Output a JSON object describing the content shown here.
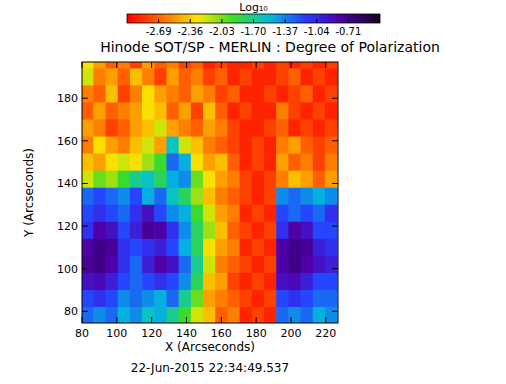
{
  "chart_data": {
    "type": "heatmap",
    "title": "Hinode SOT/SP - MERLIN : Degree of Polarization",
    "subtitle": "22-Jun-2015 22:34:49.537",
    "x_label": "X (Arcseconds)",
    "y_label": "Y (Arcseconds)",
    "xlim": [
      80,
      227
    ],
    "ylim": [
      74.5,
      197
    ],
    "xticks": [
      80,
      100,
      120,
      140,
      160,
      180,
      200,
      220
    ],
    "yticks": [
      80,
      100,
      120,
      140,
      160,
      180
    ],
    "colorbar_label": "Log₁₀",
    "clim": [
      -3.02,
      -0.38
    ],
    "cticks": [
      -2.69,
      -2.36,
      -2.03,
      {
        "value": -1.7,
        "label": "-1.70"
      },
      -1.37,
      -1.04,
      -0.71
    ],
    "x": [
      83,
      90,
      97,
      104,
      111,
      118,
      125,
      132,
      139,
      146,
      153,
      160,
      167,
      174,
      181,
      188,
      195,
      202,
      209,
      216,
      223
    ],
    "y": [
      198,
      190,
      182,
      174,
      166,
      158,
      150,
      142,
      134,
      126,
      118,
      110,
      102,
      94,
      86,
      78
    ],
    "cells": [
      [
        -2.3,
        -2.5,
        -2.7,
        -2.6,
        -2.8,
        -2.5,
        -2.7,
        -2.6,
        -2.8,
        -2.7,
        -2.9,
        -2.8,
        -2.9,
        -2.9,
        -2.8,
        -2.9,
        -2.8,
        -2.9,
        -2.8,
        -2.9,
        -2.8
      ],
      [
        -2.2,
        -2.6,
        -2.5,
        -2.7,
        -2.4,
        -2.6,
        -2.8,
        -2.5,
        -2.7,
        -2.6,
        -2.8,
        -2.7,
        -2.9,
        -2.8,
        -2.9,
        -2.9,
        -2.8,
        -2.7,
        -2.9,
        -2.8,
        -2.9
      ],
      [
        -2.6,
        -2.7,
        -2.4,
        -2.8,
        -2.6,
        -2.3,
        -2.5,
        -2.6,
        -2.7,
        -2.5,
        -2.6,
        -2.8,
        -2.7,
        -2.9,
        -2.9,
        -2.8,
        -2.9,
        -2.8,
        -2.7,
        -2.9,
        -2.8
      ],
      [
        -2.7,
        -2.5,
        -2.7,
        -2.6,
        -2.5,
        -2.3,
        -2.4,
        -2.7,
        -2.5,
        -2.8,
        -2.4,
        -2.7,
        -2.9,
        -2.8,
        -2.9,
        -2.9,
        -2.6,
        -2.8,
        -2.9,
        -2.8,
        -2.9
      ],
      [
        -2.5,
        -2.6,
        -2.8,
        -2.7,
        -2.5,
        -2.4,
        -2.2,
        -2.5,
        -2.6,
        -2.7,
        -2.5,
        -2.6,
        -2.8,
        -2.9,
        -2.9,
        -2.8,
        -2.7,
        -2.9,
        -2.8,
        -2.9,
        -2.8
      ],
      [
        -2.6,
        -2.3,
        -2.5,
        -2.6,
        -2.4,
        -2.2,
        -2.5,
        -1.6,
        -2.2,
        -2.4,
        -2.6,
        -2.7,
        -2.8,
        -2.9,
        -2.8,
        -2.9,
        -2.6,
        -2.5,
        -2.7,
        -2.8,
        -2.7
      ],
      [
        -2.4,
        -2.5,
        -2.3,
        -2.2,
        -2.3,
        -2.1,
        -1.9,
        -1.3,
        -1.5,
        -2.3,
        -2.5,
        -2.4,
        -2.7,
        -2.9,
        -2.8,
        -2.9,
        -2.5,
        -2.7,
        -2.6,
        -2.8,
        -2.6
      ],
      [
        -2.2,
        -2.0,
        -2.1,
        -1.9,
        -1.7,
        -1.6,
        -1.8,
        -1.5,
        -1.4,
        -2.0,
        -2.3,
        -2.5,
        -2.6,
        -2.8,
        -2.9,
        -2.8,
        -2.6,
        -2.4,
        -2.5,
        -2.7,
        -2.5
      ],
      [
        -1.3,
        -1.2,
        -1.3,
        -1.4,
        -1.2,
        -1.5,
        -1.3,
        -1.6,
        -1.8,
        -2.1,
        -2.4,
        -2.6,
        -2.7,
        -2.8,
        -2.9,
        -2.8,
        -1.4,
        -1.3,
        -1.4,
        -1.5,
        -1.4
      ],
      [
        -1.2,
        -1.1,
        -1.2,
        -1.3,
        -1.1,
        -0.9,
        -1.2,
        -1.4,
        -1.5,
        -1.9,
        -2.2,
        -2.5,
        -2.6,
        -2.9,
        -2.8,
        -2.9,
        -1.2,
        -1.3,
        -1.2,
        -1.3,
        -1.1
      ],
      [
        -1.1,
        -0.8,
        -0.9,
        -1.2,
        -1.0,
        -0.75,
        -0.8,
        -1.1,
        -1.4,
        -1.8,
        -2.1,
        -2.4,
        -2.7,
        -2.8,
        -2.9,
        -2.8,
        -1.1,
        -0.8,
        -0.9,
        -1.2,
        -1.2
      ],
      [
        -0.8,
        -0.7,
        -0.75,
        -1.1,
        -1.2,
        -1.1,
        -1.0,
        -1.2,
        -1.5,
        -1.8,
        -2.3,
        -2.5,
        -2.6,
        -2.9,
        -2.8,
        -2.9,
        -0.8,
        -0.7,
        -0.75,
        -1.0,
        -1.1
      ],
      [
        -0.75,
        -0.7,
        -0.8,
        -1.1,
        -1.3,
        -1.0,
        -0.8,
        -0.9,
        -1.3,
        -1.7,
        -2.2,
        -2.6,
        -2.7,
        -2.8,
        -2.9,
        -2.8,
        -0.8,
        -0.7,
        -0.8,
        -0.9,
        -1.0
      ],
      [
        -0.9,
        -0.85,
        -1.0,
        -1.2,
        -1.3,
        -1.2,
        -1.1,
        -1.2,
        -1.4,
        -1.8,
        -2.4,
        -2.5,
        -2.8,
        -2.9,
        -2.8,
        -2.9,
        -0.9,
        -0.85,
        -1.0,
        -1.2,
        -1.2
      ],
      [
        -1.2,
        -1.1,
        -1.2,
        -1.4,
        -1.3,
        -1.4,
        -1.5,
        -1.3,
        -1.7,
        -2.0,
        -2.5,
        -2.6,
        -2.7,
        -2.8,
        -2.9,
        -2.8,
        -1.2,
        -1.1,
        -1.2,
        -1.3,
        -1.3
      ],
      [
        -1.3,
        -1.4,
        -1.3,
        -1.5,
        -1.4,
        -1.6,
        -1.5,
        -1.7,
        -1.9,
        -2.2,
        -2.4,
        -2.7,
        -2.6,
        -2.9,
        -2.8,
        -2.9,
        -1.3,
        -1.4,
        -1.3,
        -1.5,
        -1.4
      ]
    ]
  }
}
